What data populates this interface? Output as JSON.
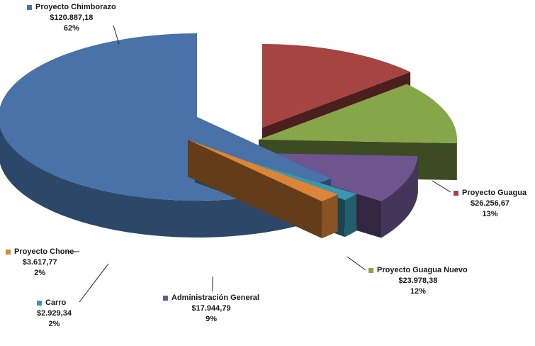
{
  "chart_data": {
    "type": "pie",
    "title": "",
    "slices": [
      {
        "label": "Proyecto Chimborazo",
        "value": 120887.18,
        "value_text": "$120.887,18",
        "percent_text": "62%",
        "color": "#4872A8"
      },
      {
        "label": "Proyecto Guagua",
        "value": 26256.67,
        "value_text": "$26.256,67",
        "percent_text": "13%",
        "color": "#A64442"
      },
      {
        "label": "Proyecto Guagua  Nuevo",
        "value": 23978.38,
        "value_text": "$23.978,38",
        "percent_text": "12%",
        "color": "#86A649"
      },
      {
        "label": "Administración General",
        "value": 17944.79,
        "value_text": "$17.944,79",
        "percent_text": "9%",
        "color": "#6E558F"
      },
      {
        "label": "Carro",
        "value": 2929.34,
        "value_text": "$2.929,34",
        "percent_text": "2%",
        "color": "#3A97AF"
      },
      {
        "label": "Proyecto Chone",
        "value": 3617.77,
        "value_text": "$3.617,77",
        "percent_text": "2%",
        "color": "#DB8538"
      }
    ]
  }
}
